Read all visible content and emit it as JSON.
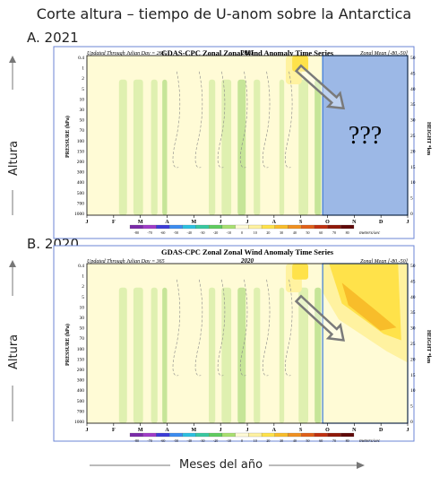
{
  "title": "Corte altura – tiempo de U-anom sobre la Antarctica",
  "side_label": "Altura",
  "bottom_label": "Meses del año",
  "question_marks": "???",
  "colors": {
    "bg": "#fffbd6",
    "pos1": "#fff2a0",
    "pos2": "#ffe24a",
    "pos3": "#f8bd2a",
    "neg1": "#dff0b0",
    "neg2": "#c6e598",
    "frame": "#6b86d6",
    "mask": "#9cb8e6",
    "arrow": "#7a7a7a"
  },
  "colorbar": {
    "ticks": [
      "-80",
      "-70",
      "-60",
      "-50",
      "-40",
      "-30",
      "-20",
      "-10",
      "0",
      "10",
      "20",
      "30",
      "40",
      "50",
      "60",
      "70",
      "80"
    ],
    "colors": [
      "#7a2aa8",
      "#a03cc8",
      "#3c3cd8",
      "#3c8cf0",
      "#2cc0e0",
      "#38c8a0",
      "#60cc60",
      "#a8e070",
      "#fffbd6",
      "#fff2a0",
      "#ffe24a",
      "#f8bd2a",
      "#f09020",
      "#e06018",
      "#c03010",
      "#901808",
      "#600808"
    ],
    "unit": "meters/sec"
  },
  "chart_data": [
    {
      "label": "A. 2021",
      "type": "heatmap",
      "title": "GDAS-CPC Zonal Zonal Wind Anomaly Time Series",
      "updated": "Updated Through Julian Day = 268",
      "year": "2021",
      "region": "Zonal Mean [-80,-50]",
      "x_months": [
        "J",
        "F",
        "M",
        "A",
        "M",
        "J",
        "J",
        "A",
        "S",
        "O",
        "N",
        "D",
        "J"
      ],
      "y_pressure_ticks": [
        "0.4",
        "1",
        "2",
        "5",
        "10",
        "30",
        "50",
        "70",
        "100",
        "150",
        "200",
        "300",
        "400",
        "500",
        "700",
        "1000"
      ],
      "y_pressure_label": "PRESSURE (hPa)",
      "y_height_ticks": [
        "50",
        "45",
        "40",
        "35",
        "30",
        "25",
        "20",
        "15",
        "10",
        "5",
        "0"
      ],
      "y_height_label": "HEIGHT *km",
      "masked_after_month": "O"
    },
    {
      "label": "B. 2020",
      "type": "heatmap",
      "title": "GDAS-CPC Zonal Zonal Wind Anomaly Time Series",
      "updated": "Updated Through Julian Day = 365",
      "year": "2020",
      "region": "Zonal Mean [-80,-50]",
      "x_months": [
        "J",
        "F",
        "M",
        "A",
        "M",
        "J",
        "J",
        "A",
        "S",
        "O",
        "N",
        "D",
        "J"
      ],
      "y_pressure_ticks": [
        "0.4",
        "1",
        "2",
        "5",
        "10",
        "30",
        "50",
        "70",
        "100",
        "150",
        "200",
        "300",
        "400",
        "500",
        "700",
        "1000"
      ],
      "y_pressure_label": "PRESSURE (hPa)",
      "y_height_ticks": [
        "50",
        "45",
        "40",
        "35",
        "30",
        "25",
        "20",
        "15",
        "10",
        "5",
        "0"
      ],
      "y_height_label": "HEIGHT *km",
      "highlight_from_month": "O"
    }
  ]
}
